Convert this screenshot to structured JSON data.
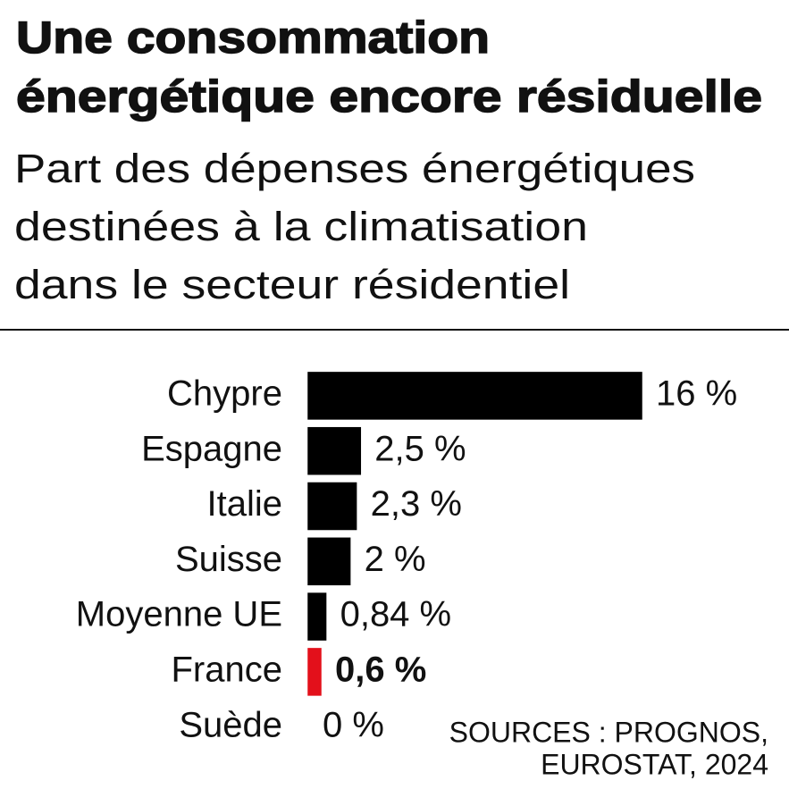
{
  "chart_data": {
    "type": "bar",
    "orientation": "horizontal",
    "title": [
      "Une consommation",
      "énergétique encore résiduelle"
    ],
    "subtitle": [
      "Part des dépenses énergétiques",
      "destinées à la climatisation",
      "dans le secteur résidentiel"
    ],
    "categories": [
      "Chypre",
      "Espagne",
      "Italie",
      "Suisse",
      "Moyenne UE",
      "France",
      "Suède"
    ],
    "values": [
      16,
      2.5,
      2.3,
      2,
      0.84,
      0.6,
      0
    ],
    "value_labels": [
      "16 %",
      "2,5 %",
      "2,3 %",
      "2 %",
      "0,84 %",
      "0,6 %",
      "0 %"
    ],
    "colors": [
      "#000000",
      "#000000",
      "#000000",
      "#000000",
      "#000000",
      "#e3101b",
      "#000000"
    ],
    "source": [
      "SOURCES : PROGNOS,",
      "EUROSTAT, 2024"
    ]
  }
}
